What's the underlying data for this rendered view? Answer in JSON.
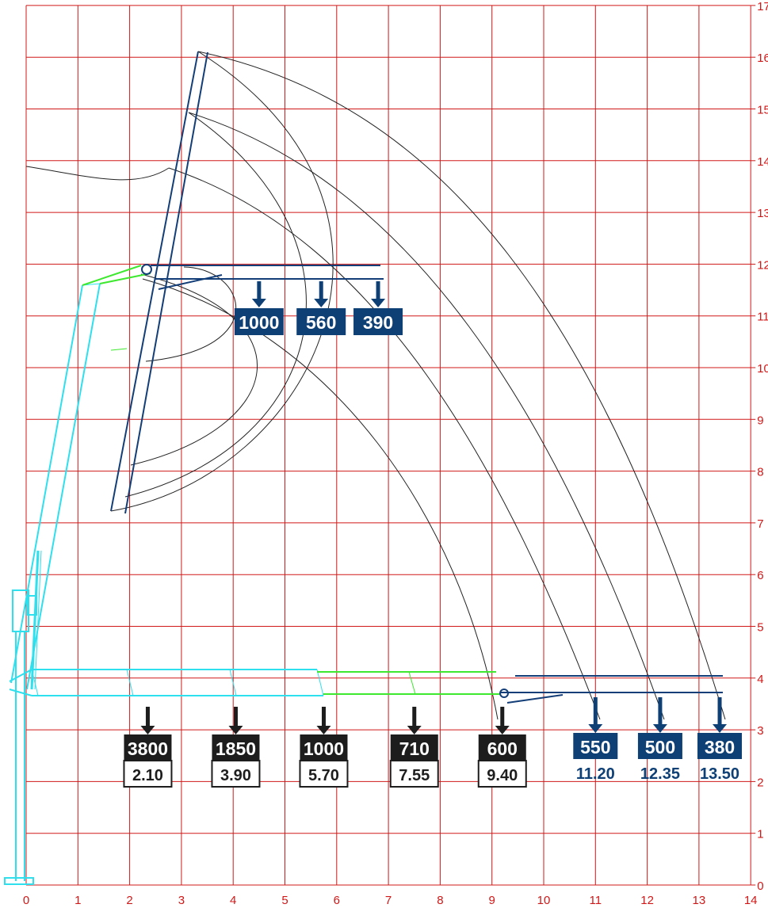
{
  "chart_data": {
    "type": "diagram",
    "title": "",
    "x_axis": {
      "ticks": [
        "0",
        "1",
        "2",
        "3",
        "4",
        "5",
        "6",
        "7",
        "8",
        "9",
        "10",
        "11",
        "12",
        "13",
        "14"
      ],
      "range": [
        0,
        14
      ]
    },
    "y_axis": {
      "ticks": [
        "0",
        "1",
        "2",
        "3",
        "4",
        "5",
        "6",
        "7",
        "8",
        "9",
        "10",
        "11",
        "12",
        "13",
        "14",
        "15",
        "16",
        "17"
      ],
      "range": [
        0,
        17
      ]
    },
    "grid": true,
    "colors": {
      "grid": "#d01818",
      "boom_cyan": "#2ee0ee",
      "boom_green": "#3ee82e",
      "jib_navy": "#133e78",
      "arc": "#222222",
      "box_dark": "#1d1d1d",
      "box_navy": "#0e3f75"
    },
    "main_boom_loads": [
      {
        "load": "3800",
        "reach": "2.10",
        "x": 2.35
      },
      {
        "load": "1850",
        "reach": "3.90",
        "x": 4.05
      },
      {
        "load": "1000",
        "reach": "5.70",
        "x": 5.75
      },
      {
        "load": "710",
        "reach": "7.55",
        "x": 7.5
      },
      {
        "load": "600",
        "reach": "9.40",
        "x": 9.2
      }
    ],
    "jib_horizontal_loads": [
      {
        "load": "550",
        "reach": "11.20",
        "x": 11.0
      },
      {
        "load": "500",
        "reach": "12.35",
        "x": 12.25
      },
      {
        "load": "380",
        "reach": "13.50",
        "x": 13.4
      }
    ],
    "jib_raised_loads": [
      {
        "load": "1000",
        "x": 4.5
      },
      {
        "load": "560",
        "x": 5.7
      },
      {
        "load": "390",
        "x": 6.8
      }
    ]
  }
}
